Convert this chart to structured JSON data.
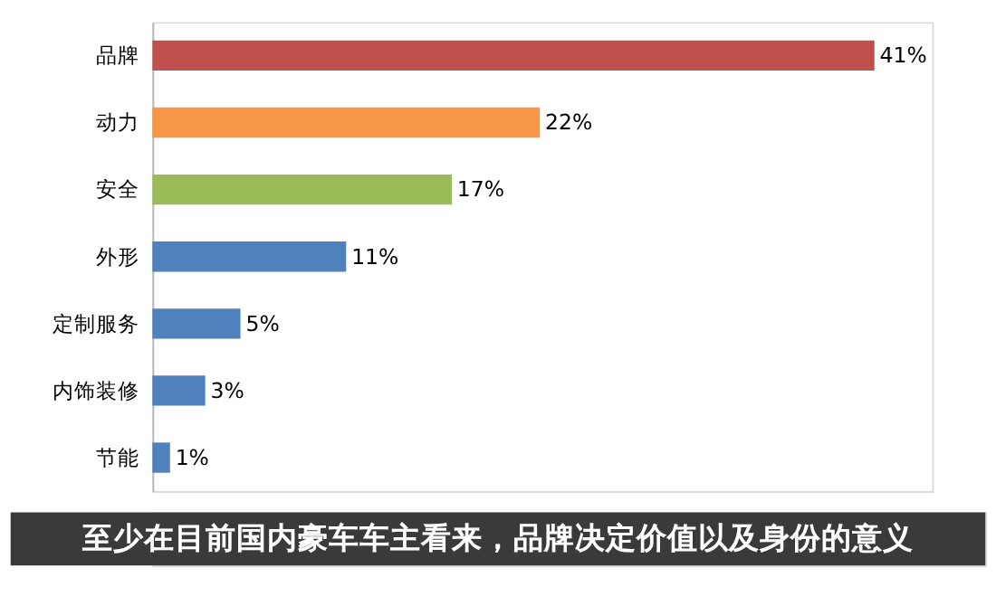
{
  "chart_data": {
    "type": "bar",
    "orientation": "horizontal",
    "categories": [
      "品牌",
      "动力",
      "安全",
      "外形",
      "定制服务",
      "内饰装修",
      "节能"
    ],
    "values": [
      41,
      22,
      17,
      11,
      5,
      3,
      1
    ],
    "colors": [
      "#c0504d",
      "#f79646",
      "#9bbb59",
      "#4f81bd",
      "#4f81bd",
      "#4f81bd",
      "#4f81bd"
    ],
    "value_labels": [
      "41%",
      "22%",
      "17%",
      "11%",
      "5%",
      "3%",
      "1%"
    ],
    "annotations": [
      "至少在目前国内豪车车主看来，品牌决定价值以及身份的意义"
    ],
    "grid": false
  }
}
